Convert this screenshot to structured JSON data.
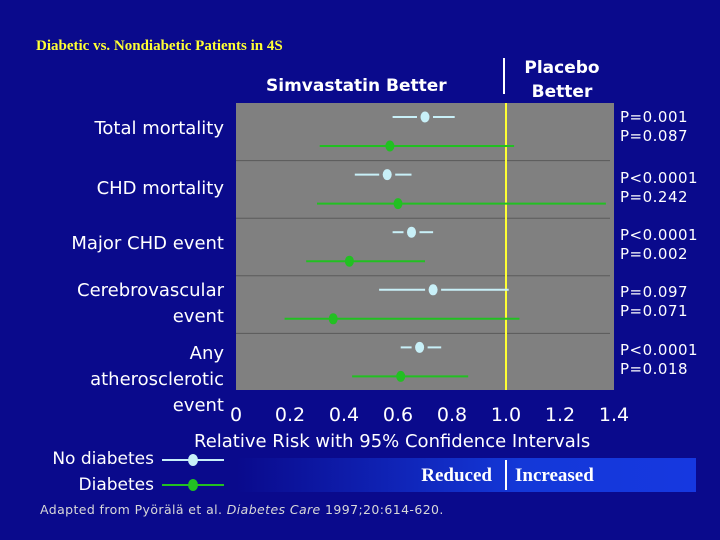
{
  "title": "Diabetic vs. Nondiabetic Patients in 4S",
  "favor_left": "Simvastatin Better",
  "favor_right": [
    "Placebo",
    "Better"
  ],
  "xlabel": "Relative Risk with 95% Confidence Intervals",
  "legend": {
    "no_diabetes": "No diabetes",
    "diabetes": "Diabetes"
  },
  "band": {
    "left": "Reduced",
    "right": "Increased"
  },
  "source_prefix": "Adapted from Pyörälä et al. ",
  "source_journal": "Diabetes Care",
  "source_suffix": " 1997;20:614-620.",
  "colors": {
    "background": "#0a0a8c",
    "plot": "#808080",
    "title": "#ffff33",
    "no_diabetes": "#c8f0f8",
    "diabetes": "#22c022",
    "reference_line": "#ffff33"
  },
  "chart_data": {
    "type": "forest",
    "x_ticks": [
      "0",
      "0.2",
      "0.4",
      "0.6",
      "0.8",
      "1.0",
      "1.2",
      "1.4"
    ],
    "xlim": [
      0,
      1.4
    ],
    "reference_value": 1.0,
    "series_names": [
      "No diabetes",
      "Diabetes"
    ],
    "rows": [
      {
        "label": [
          "Total mortality"
        ],
        "p_values": [
          "P=0.001",
          "P=0.087"
        ],
        "no_diabetes": {
          "rr": 0.7,
          "lo": 0.58,
          "hi": 0.81
        },
        "diabetes": {
          "rr": 0.57,
          "lo": 0.31,
          "hi": 1.03
        }
      },
      {
        "label": [
          "CHD mortality"
        ],
        "p_values": [
          "P<0.0001",
          "P=0.242"
        ],
        "no_diabetes": {
          "rr": 0.56,
          "lo": 0.44,
          "hi": 0.65
        },
        "diabetes": {
          "rr": 0.6,
          "lo": 0.3,
          "hi": 1.37
        }
      },
      {
        "label": [
          "Major CHD event"
        ],
        "p_values": [
          "P<0.0001",
          "P=0.002"
        ],
        "no_diabetes": {
          "rr": 0.65,
          "lo": 0.58,
          "hi": 0.73
        },
        "diabetes": {
          "rr": 0.42,
          "lo": 0.26,
          "hi": 0.7
        }
      },
      {
        "label": [
          "Cerebrovascular",
          "event"
        ],
        "p_values": [
          "P=0.097",
          "P=0.071"
        ],
        "no_diabetes": {
          "rr": 0.73,
          "lo": 0.53,
          "hi": 1.01
        },
        "diabetes": {
          "rr": 0.36,
          "lo": 0.18,
          "hi": 1.05
        }
      },
      {
        "label": [
          "Any",
          "atherosclerotic",
          "event"
        ],
        "p_values": [
          "P<0.0001",
          "P=0.018"
        ],
        "no_diabetes": {
          "rr": 0.68,
          "lo": 0.61,
          "hi": 0.76
        },
        "diabetes": {
          "rr": 0.61,
          "lo": 0.43,
          "hi": 0.86
        }
      }
    ]
  }
}
